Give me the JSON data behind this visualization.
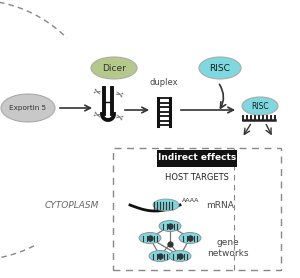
{
  "bg_color": "#ffffff",
  "cytoplasm_text": "CYTOPLASM",
  "exportin5_label": "Exportin 5",
  "exportin5_color": "#c8c8c8",
  "dicer_label": "Dicer",
  "dicer_color": "#b5c98a",
  "duplex_label": "duplex",
  "risc_label": "RISC",
  "risc_color": "#7dd8e0",
  "indirect_label": "Indirect effects",
  "host_targets_label": "HOST TARGETS",
  "mrna_label": "mRNA",
  "gene_networks_label": "gene\nnetworks",
  "aaaa_label": "AAAA",
  "dashed_box_color": "#888888",
  "arrow_color": "#333333",
  "stem_color": "#111111",
  "duplex_color": "#111111",
  "indirect_bg": "#111111",
  "indirect_text_color": "#ffffff"
}
